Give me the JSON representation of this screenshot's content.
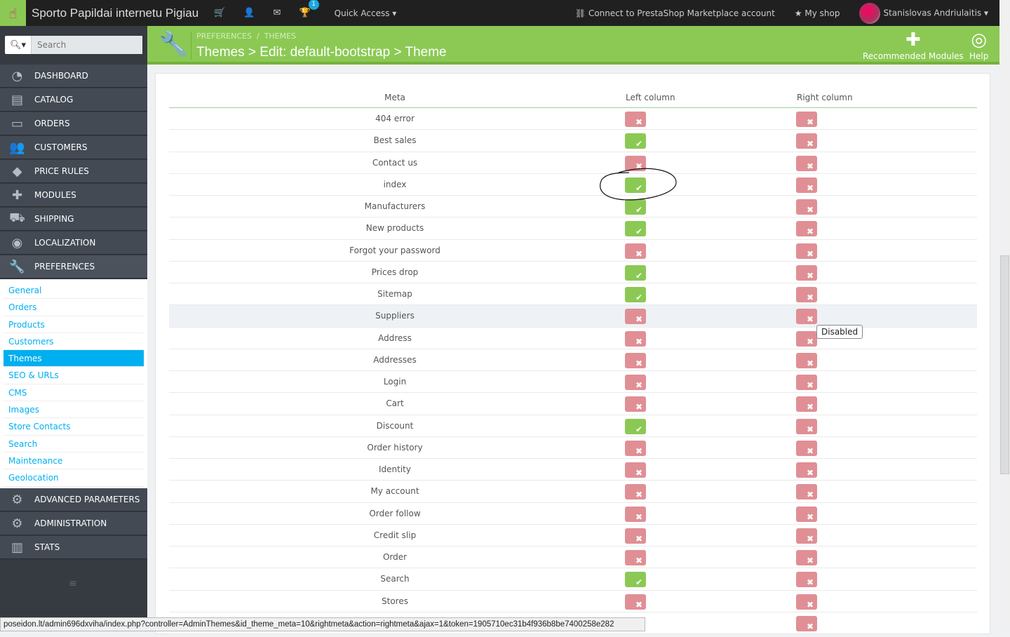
{
  "topbar": {
    "shop_name": "Sporto Papildai internetu Pigiau",
    "notification_count": "1",
    "quick_access": "Quick Access ▾",
    "connect": "Connect to PrestaShop Marketplace account",
    "my_shop": "My shop",
    "user": "Stanislovas Andriulaitis ▾"
  },
  "search": {
    "placeholder": "Search"
  },
  "sidebar": {
    "items": [
      {
        "label": "DASHBOARD",
        "icon": "dashboard-icon",
        "glyph": "◔"
      },
      {
        "label": "CATALOG",
        "icon": "book-icon",
        "glyph": "▤"
      },
      {
        "label": "ORDERS",
        "icon": "credit-card-icon",
        "glyph": "▭"
      },
      {
        "label": "CUSTOMERS",
        "icon": "users-icon",
        "glyph": "👥"
      },
      {
        "label": "PRICE RULES",
        "icon": "tags-icon",
        "glyph": "◆"
      },
      {
        "label": "MODULES",
        "icon": "puzzle-icon",
        "glyph": "✚"
      },
      {
        "label": "SHIPPING",
        "icon": "truck-icon",
        "glyph": "⛟"
      },
      {
        "label": "LOCALIZATION",
        "icon": "globe-icon",
        "glyph": "◉"
      },
      {
        "label": "PREFERENCES",
        "icon": "wrench-icon",
        "glyph": "🔧"
      }
    ],
    "sub": [
      "General",
      "Orders",
      "Products",
      "Customers",
      "Themes",
      "SEO & URLs",
      "CMS",
      "Images",
      "Store Contacts",
      "Search",
      "Maintenance",
      "Geolocation"
    ],
    "active_sub": "Themes",
    "bottom": [
      {
        "label": "ADVANCED PARAMETERS",
        "icon": "gears-icon",
        "glyph": "⚙"
      },
      {
        "label": "ADMINISTRATION",
        "icon": "gear-icon",
        "glyph": "⚙"
      },
      {
        "label": "STATS",
        "icon": "bar-chart-icon",
        "glyph": "▥"
      }
    ]
  },
  "header": {
    "breadcrumb": [
      "PREFERENCES",
      "THEMES"
    ],
    "title": "Themes > Edit: default-bootstrap > Theme",
    "recommended": "Recommended Modules",
    "help": "Help"
  },
  "table": {
    "columns": [
      "Meta",
      "Left column",
      "Right column"
    ],
    "rows": [
      [
        "404 error",
        false,
        false
      ],
      [
        "Best sales",
        true,
        false
      ],
      [
        "Contact us",
        false,
        false
      ],
      [
        "index",
        true,
        false
      ],
      [
        "Manufacturers",
        true,
        false
      ],
      [
        "New products",
        true,
        false
      ],
      [
        "Forgot your password",
        false,
        false
      ],
      [
        "Prices drop",
        true,
        false
      ],
      [
        "Sitemap",
        true,
        false
      ],
      [
        "Suppliers",
        false,
        false
      ],
      [
        "Address",
        false,
        false
      ],
      [
        "Addresses",
        false,
        false
      ],
      [
        "Login",
        false,
        false
      ],
      [
        "Cart",
        false,
        false
      ],
      [
        "Discount",
        true,
        false
      ],
      [
        "Order history",
        false,
        false
      ],
      [
        "Identity",
        false,
        false
      ],
      [
        "My account",
        false,
        false
      ],
      [
        "Order follow",
        false,
        false
      ],
      [
        "Credit slip",
        false,
        false
      ],
      [
        "Order",
        false,
        false
      ],
      [
        "Search",
        true,
        false
      ],
      [
        "Stores",
        false,
        false
      ],
      [
        "",
        null,
        false
      ]
    ]
  },
  "tooltip": "Disabled",
  "status_url": "poseidon.lt/admin696dxviha/index.php?controller=AdminThemes&id_theme_meta=10&rightmeta&action=rightmeta&ajax=1&token=1905710ec31b4f936b8be7400258e282",
  "colors": {
    "green": "#8bc954",
    "red": "#e08f95",
    "blue": "#00aff0",
    "sidebar": "#363a41"
  }
}
